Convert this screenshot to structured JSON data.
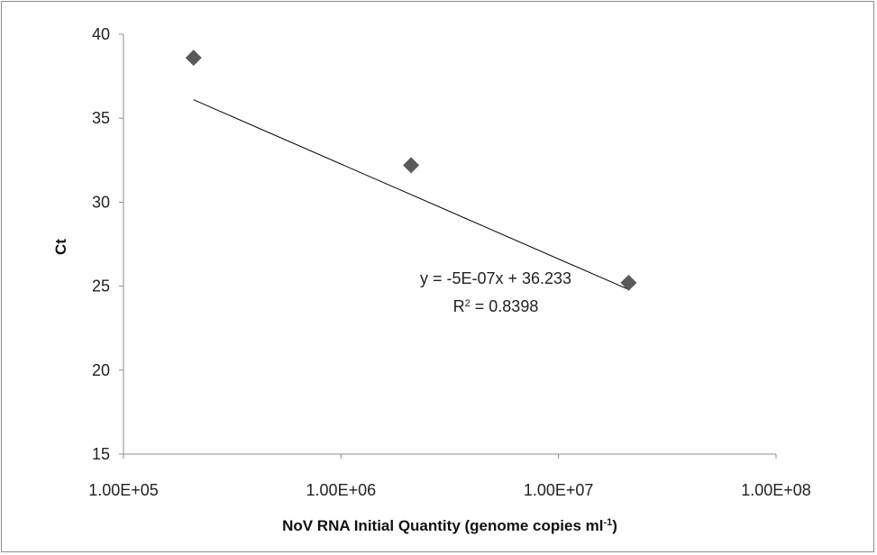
{
  "chart_data": {
    "type": "scatter",
    "xscale": "log",
    "xlim": [
      100000,
      100000000
    ],
    "ylim": [
      15,
      40
    ],
    "x_ticks": [
      {
        "value": 100000,
        "label": "1.00E+05"
      },
      {
        "value": 1000000,
        "label": "1.00E+06"
      },
      {
        "value": 10000000,
        "label": "1.00E+07"
      },
      {
        "value": 100000000,
        "label": "1.00E+08"
      }
    ],
    "y_ticks": [
      {
        "value": 15,
        "label": "15"
      },
      {
        "value": 20,
        "label": "20"
      },
      {
        "value": 25,
        "label": "25"
      },
      {
        "value": 30,
        "label": "30"
      },
      {
        "value": 35,
        "label": "35"
      },
      {
        "value": 40,
        "label": "40"
      }
    ],
    "xlabel": "NoV RNA Initial Quantity (genome copies ml",
    "xlabel_sup": "-1",
    "xlabel_end": ")",
    "ylabel": "Ct",
    "grid": false,
    "legend": "none",
    "marker": "diamond",
    "marker_color": "#5a5a5a",
    "series": [
      {
        "x": [
          210000,
          2100000,
          21000000
        ],
        "y": [
          38.6,
          32.2,
          25.2
        ]
      }
    ],
    "trendline": {
      "x": [
        210000,
        21000000
      ],
      "y": [
        36.1,
        24.8
      ],
      "equation": "y = -5E-07x + 36.233",
      "r2_prefix": "R",
      "r2_sup": "2",
      "r2_rest": " = 0.8398"
    }
  }
}
